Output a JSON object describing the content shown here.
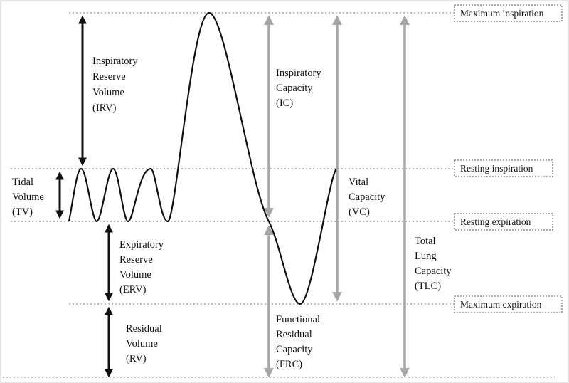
{
  "volumes": {
    "irv": [
      "Inspiratory",
      "Reserve",
      "Volume",
      "(IRV)"
    ],
    "tv": [
      "Tidal",
      "Volume",
      "(TV)"
    ],
    "erv": [
      "Expiratory",
      "Reserve",
      "Volume",
      "(ERV)"
    ],
    "rv": [
      "Residual",
      "Volume",
      "(RV)"
    ]
  },
  "capacities": {
    "ic": [
      "Inspiratory",
      "Capacity",
      "(IC)"
    ],
    "vc": [
      "Vital",
      "Capacity",
      "(VC)"
    ],
    "frc": [
      "Functional",
      "Residual",
      "Capacity",
      "(FRC)"
    ],
    "tlc": [
      "Total",
      "Lung",
      "Capacity",
      "(TLC)"
    ]
  },
  "levels": {
    "max_inspiration": "Maximum  inspiration",
    "resting_inspiration": "Resting inspiration",
    "resting_expiration": "Resting expiration",
    "max_expiration": "Maximum  expiration"
  },
  "colors": {
    "black_arrow": "#111111",
    "gray_arrow": "#a6a6a6",
    "dashed_line": "#777777",
    "trace": "#111111"
  }
}
